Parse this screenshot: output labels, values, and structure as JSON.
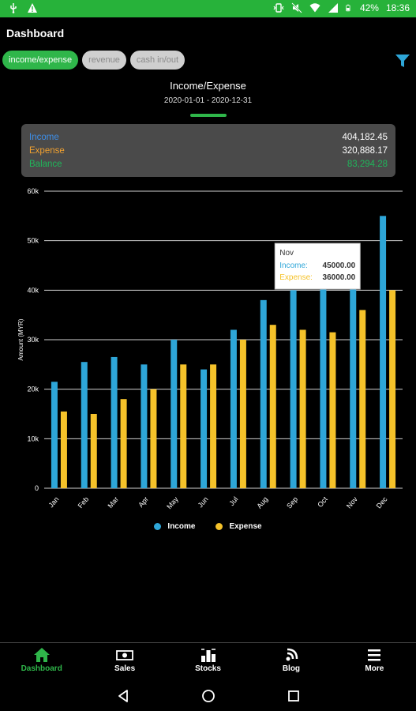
{
  "status_bar": {
    "battery": "42%",
    "time": "18:36",
    "icons": [
      "usb-icon",
      "warning-icon",
      "vibrate-icon",
      "mute-icon",
      "wifi-icon",
      "signal-icon",
      "battery-icon"
    ]
  },
  "header": {
    "title": "Dashboard",
    "filter_icon": "filter-icon"
  },
  "tabs": [
    {
      "label": "income/expense",
      "active": true
    },
    {
      "label": "revenue",
      "active": false
    },
    {
      "label": "cash in/out",
      "active": false
    }
  ],
  "chart_header": {
    "title": "Income/Expense",
    "range": "2020-01-01 - 2020-12-31"
  },
  "summary": {
    "rows": [
      {
        "label": "Income",
        "value": "404,182.45",
        "color": "#3d8ee8"
      },
      {
        "label": "Expense",
        "value": "320,888.17",
        "color": "#f0a030"
      },
      {
        "label": "Balance",
        "value": "83,294.28",
        "color": "#20b45a"
      }
    ]
  },
  "chart_data": {
    "type": "bar",
    "ylabel": "Amount (MYR)",
    "ylim": [
      0,
      60000
    ],
    "yticks": [
      "0",
      "10k",
      "20k",
      "30k",
      "40k",
      "50k",
      "60k"
    ],
    "categories": [
      "Jan",
      "Feb",
      "Mar",
      "Apr",
      "May",
      "Jun",
      "Jul",
      "Aug",
      "Sep",
      "Oct",
      "Nov",
      "Dec"
    ],
    "series": [
      {
        "name": "Income",
        "color": "#2ea6d8",
        "values": [
          21500,
          25500,
          26500,
          25000,
          30000,
          24000,
          32000,
          38000,
          40000,
          40500,
          45000,
          55000
        ]
      },
      {
        "name": "Expense",
        "color": "#f5c22a",
        "values": [
          15500,
          15000,
          18000,
          20000,
          25000,
          25000,
          30000,
          33000,
          32000,
          31500,
          36000,
          40000
        ]
      }
    ],
    "grid": true,
    "legend": "bottom",
    "tooltip": {
      "title": "Nov",
      "lines": [
        {
          "label": "Income:",
          "value": "45000.00"
        },
        {
          "label": "Expense:",
          "value": "36000.00"
        }
      ]
    }
  },
  "bottom_nav": [
    {
      "label": "Dashboard",
      "icon": "home-icon",
      "active": true
    },
    {
      "label": "Sales",
      "icon": "money-icon",
      "active": false
    },
    {
      "label": "Stocks",
      "icon": "stocks-icon",
      "active": false
    },
    {
      "label": "Blog",
      "icon": "blog-icon",
      "active": false
    },
    {
      "label": "More",
      "icon": "menu-icon",
      "active": false
    }
  ],
  "system_nav": [
    "back-icon",
    "home-circle-icon",
    "recents-icon"
  ]
}
